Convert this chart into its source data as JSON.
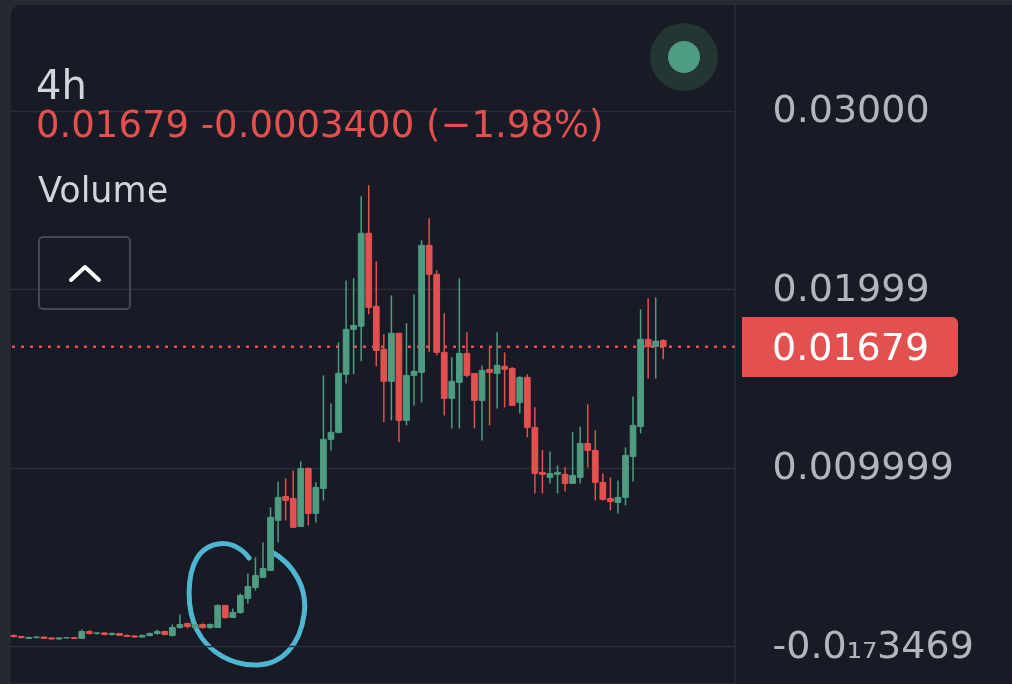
{
  "chart_data": {
    "type": "candlestick",
    "title": "4h",
    "subtitle": "0.01679 -0.0003400 (−1.98%)",
    "annotations": [
      "Volume"
    ],
    "categories": [
      null,
      null,
      null,
      null,
      null,
      null,
      null,
      null,
      null,
      null,
      null,
      null,
      null,
      null,
      null,
      null,
      null,
      null,
      null,
      null,
      null,
      null,
      null,
      null,
      null,
      null,
      null,
      null,
      null,
      null,
      null,
      null,
      null,
      null,
      null,
      null,
      null,
      null,
      null,
      null,
      null,
      null,
      null,
      null,
      null,
      null,
      null,
      null,
      null,
      null,
      null,
      null,
      null,
      null,
      null,
      null,
      null,
      null,
      null,
      null,
      null,
      null,
      null,
      null,
      null,
      null,
      null,
      null,
      null,
      null,
      null,
      null,
      null,
      null,
      null,
      null,
      null,
      null,
      null,
      null,
      null,
      null,
      null,
      null,
      null,
      null,
      null,
      null,
      null,
      null,
      null,
      null,
      null,
      null,
      null,
      null
    ],
    "ohlc": [
      [
        0.00062,
        0.00067,
        0.0005,
        0.00056
      ],
      [
        0.00056,
        0.00059,
        0.00045,
        0.0005
      ],
      [
        0.00045,
        0.00056,
        0.00042,
        0.0005
      ],
      [
        0.0005,
        0.00056,
        0.00045,
        0.00053
      ],
      [
        0.00053,
        0.00056,
        0.00042,
        0.00045
      ],
      [
        0.00048,
        0.0005,
        0.00039,
        0.00042
      ],
      [
        0.00042,
        0.0005,
        0.00039,
        0.00048
      ],
      [
        0.00048,
        0.00053,
        0.00045,
        0.0005
      ],
      [
        0.0005,
        0.00053,
        0.00042,
        0.00045
      ],
      [
        0.00045,
        0.00095,
        0.00042,
        0.00084
      ],
      [
        0.00084,
        0.0009,
        0.00067,
        0.00073
      ],
      [
        0.00073,
        0.00078,
        0.00067,
        0.00076
      ],
      [
        0.00076,
        0.00078,
        0.00062,
        0.00067
      ],
      [
        0.00067,
        0.00078,
        0.00062,
        0.00073
      ],
      [
        0.00073,
        0.00076,
        0.00059,
        0.00062
      ],
      [
        0.00062,
        0.00067,
        0.00053,
        0.00056
      ],
      [
        0.00059,
        0.00062,
        0.0005,
        0.00053
      ],
      [
        0.00053,
        0.00067,
        0.0005,
        0.00062
      ],
      [
        0.00062,
        0.00078,
        0.00056,
        0.00073
      ],
      [
        0.00073,
        0.00095,
        0.00067,
        0.00084
      ],
      [
        0.00084,
        0.0009,
        0.00062,
        0.00067
      ],
      [
        0.00062,
        0.00123,
        0.00056,
        0.00106
      ],
      [
        0.00106,
        0.00179,
        0.00101,
        0.00123
      ],
      [
        0.00129,
        0.00134,
        0.00101,
        0.00112
      ],
      [
        0.00106,
        0.00129,
        0.00101,
        0.00123
      ],
      [
        0.00123,
        0.00129,
        0.001,
        0.00106
      ],
      [
        0.00106,
        0.00129,
        0.001,
        0.00123
      ],
      [
        0.00106,
        0.00235,
        0.00106,
        0.0023
      ],
      [
        0.0023,
        0.0023,
        0.00157,
        0.00162
      ],
      [
        0.00162,
        0.00213,
        0.00162,
        0.0019
      ],
      [
        0.0019,
        0.00297,
        0.00185,
        0.00286
      ],
      [
        0.00269,
        0.00409,
        0.00241,
        0.00336
      ],
      [
        0.0033,
        0.00499,
        0.00314,
        0.00398
      ],
      [
        0.00387,
        0.00583,
        0.00387,
        0.00437
      ],
      [
        0.00426,
        0.00779,
        0.00426,
        0.00723
      ],
      [
        0.00706,
        0.00924,
        0.00583,
        0.00835
      ],
      [
        0.0084,
        0.00941,
        0.00706,
        0.00818
      ],
      [
        0.00829,
        0.00986,
        0.00667,
        0.00667
      ],
      [
        0.00672,
        0.01036,
        0.00672,
        0.00997
      ],
      [
        0.00997,
        0.01003,
        0.00678,
        0.00745
      ],
      [
        0.00745,
        0.00919,
        0.00695,
        0.00891
      ],
      [
        0.00885,
        0.01518,
        0.00818,
        0.0116
      ],
      [
        0.0116,
        0.01361,
        0.01098,
        0.01199
      ],
      [
        0.01199,
        0.01703,
        0.01193,
        0.0153
      ],
      [
        0.01524,
        0.0205,
        0.01473,
        0.01776
      ],
      [
        0.01776,
        0.02062,
        0.01524,
        0.01798
      ],
      [
        0.01793,
        0.02521,
        0.01597,
        0.02314
      ],
      [
        0.02314,
        0.02583,
        0.0186,
        0.01899
      ],
      [
        0.01905,
        0.02157,
        0.01569,
        0.01658
      ],
      [
        0.01664,
        0.01748,
        0.01255,
        0.01485
      ],
      [
        0.01485,
        0.01966,
        0.01266,
        0.01754
      ],
      [
        0.01754,
        0.01754,
        0.01143,
        0.01266
      ],
      [
        0.01266,
        0.0181,
        0.01238,
        0.01518
      ],
      [
        0.01518,
        0.01972,
        0.0135,
        0.01541
      ],
      [
        0.01535,
        0.02275,
        0.01367,
        0.02246
      ],
      [
        0.02246,
        0.02398,
        0.01647,
        0.02084
      ],
      [
        0.02084,
        0.02106,
        0.0163,
        0.01647
      ],
      [
        0.01647,
        0.01866,
        0.01294,
        0.01389
      ],
      [
        0.01389,
        0.01619,
        0.01221,
        0.01485
      ],
      [
        0.01479,
        0.02062,
        0.01221,
        0.01641
      ],
      [
        0.01641,
        0.01759,
        0.01507,
        0.01518
      ],
      [
        0.01529,
        0.01529,
        0.01221,
        0.01378
      ],
      [
        0.01378,
        0.01574,
        0.01154,
        0.01546
      ],
      [
        0.01552,
        0.01675,
        0.01238,
        0.01535
      ],
      [
        0.01529,
        0.01759,
        0.01333,
        0.01574
      ],
      [
        0.01569,
        0.01647,
        0.01339,
        0.01552
      ],
      [
        0.01557,
        0.01563,
        0.0135,
        0.0135
      ],
      [
        0.01367,
        0.01513,
        0.01305,
        0.01507
      ],
      [
        0.01507,
        0.01524,
        0.01171,
        0.01227
      ],
      [
        0.01227,
        0.01339,
        0.00857,
        0.00969
      ],
      [
        0.00975,
        0.011,
        0.00857,
        0.00964
      ],
      [
        0.00947,
        0.01092,
        0.00913,
        0.00969
      ],
      [
        0.00964,
        0.01014,
        0.00857,
        0.00975
      ],
      [
        0.00964,
        0.01003,
        0.00868,
        0.00913
      ],
      [
        0.00913,
        0.012,
        0.00913,
        0.00958
      ],
      [
        0.00947,
        0.0123,
        0.00913,
        0.01137
      ],
      [
        0.01137,
        0.01356,
        0.01003,
        0.01098
      ],
      [
        0.01098,
        0.0121,
        0.00818,
        0.00919
      ],
      [
        0.00919,
        0.00969,
        0.00818,
        0.00824
      ],
      [
        0.00829,
        0.00947,
        0.00762,
        0.00812
      ],
      [
        0.00807,
        0.0093,
        0.00745,
        0.00835
      ],
      [
        0.00835,
        0.01115,
        0.0079,
        0.0107
      ],
      [
        0.01064,
        0.014,
        0.00924,
        0.01238
      ],
      [
        0.01232,
        0.01888,
        0.01193,
        0.0172
      ],
      [
        0.0172,
        0.0195,
        0.015,
        0.0168
      ],
      [
        0.0168,
        0.01955,
        0.015,
        0.0171
      ],
      [
        0.01713,
        0.0172,
        0.01608,
        0.01679
      ],
      null,
      null,
      null,
      null,
      null,
      null,
      null,
      null,
      null
    ],
    "colors": [
      "#e25050",
      "#e25050",
      "#4e9c82",
      "#4e9c82",
      "#e25050",
      "#e25050",
      "#4e9c82",
      "#4e9c82",
      "#e25050",
      "#4e9c82",
      "#e25050",
      "#4e9c82",
      "#e25050",
      "#4e9c82",
      "#e25050",
      "#e25050",
      "#e25050",
      "#4e9c82",
      "#4e9c82",
      "#4e9c82",
      "#e25050",
      "#4e9c82",
      "#4e9c82",
      "#e25050",
      "#4e9c82",
      "#e25050",
      "#4e9c82",
      "#4e9c82",
      "#e25050",
      "#4e9c82",
      "#4e9c82",
      "#4e9c82",
      "#4e9c82",
      "#4e9c82",
      "#4e9c82",
      "#4e9c82",
      "#e25050",
      "#e25050",
      "#4e9c82",
      "#e25050",
      "#4e9c82",
      "#4e9c82",
      "#4e9c82",
      "#4e9c82",
      "#4e9c82",
      "#4e9c82",
      "#4e9c82",
      "#e25050",
      "#e25050",
      "#e25050",
      "#4e9c82",
      "#e25050",
      "#4e9c82",
      "#4e9c82",
      "#4e9c82",
      "#e25050",
      "#e25050",
      "#e25050",
      "#4e9c82",
      "#4e9c82",
      "#e25050",
      "#e25050",
      "#4e9c82",
      "#e25050",
      "#4e9c82",
      "#e25050",
      "#e25050",
      "#4e9c82",
      "#e25050",
      "#e25050",
      "#e25050",
      "#4e9c82",
      "#4e9c82",
      "#e25050",
      "#4e9c82",
      "#4e9c82",
      "#e25050",
      "#e25050",
      "#e25050",
      "#e25050",
      "#4e9c82",
      "#4e9c82",
      "#4e9c82",
      "#4e9c82",
      "#e25050",
      "#4e9c82",
      "#e25050",
      null,
      null,
      null,
      null,
      null,
      null,
      null,
      null,
      null
    ],
    "ylim": [
      -0.0021,
      0.0362
    ],
    "yticks": [
      {
        "value": 0.03,
        "label": "0.03000"
      },
      0.01999,
      0.009999,
      {
        "value": -3.469e-19,
        "label": "-0.0₁₇3469"
      }
    ],
    "grid": "y",
    "tick_labels": "y",
    "ref_lines": [
      {
        "axis": "y",
        "value": 0.01679,
        "label": "0.01679",
        "color": "#e25050",
        "line_style": "dotted"
      }
    ]
  }
}
